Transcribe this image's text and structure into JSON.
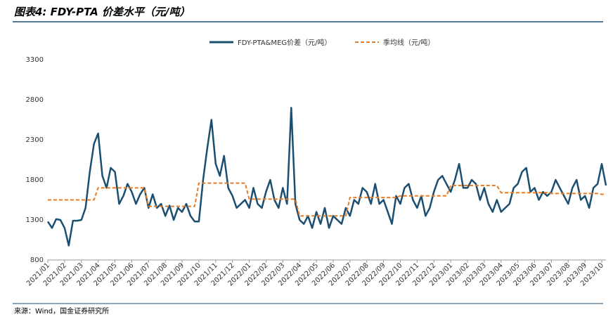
{
  "chart_data": {
    "type": "line",
    "title": "图表4: FDY-PTA 价差水平（元/吨）",
    "source": "来源：Wind，国金证券研究所",
    "categories": [
      "2021/01",
      null,
      null,
      null,
      "2021/02",
      null,
      null,
      null,
      "2021/03",
      null,
      null,
      null,
      "2021/04",
      null,
      null,
      null,
      "2021/05",
      null,
      null,
      null,
      "2021/06",
      null,
      null,
      null,
      "2021/07",
      null,
      null,
      null,
      "2021/08",
      null,
      null,
      null,
      "2021/09",
      null,
      null,
      null,
      "2021/10",
      null,
      null,
      null,
      "2021/11",
      null,
      null,
      null,
      "2021/12",
      null,
      null,
      null,
      "2022/01",
      null,
      null,
      null,
      "2022/02",
      null,
      null,
      null,
      "2022/03",
      null,
      null,
      null,
      "2022/04",
      null,
      null,
      null,
      "2022/05",
      null,
      null,
      null,
      "2022/06",
      null,
      null,
      null,
      "2022/07",
      null,
      null,
      null,
      "2022/08",
      null,
      null,
      null,
      "2022/09",
      null,
      null,
      null,
      "2022/10",
      null,
      null,
      null,
      "2022/11",
      null,
      null,
      null,
      "2022/12",
      null,
      null,
      null,
      "2023/01",
      null,
      null,
      null,
      "2023/02",
      null,
      null,
      null,
      "2023/03",
      null,
      null,
      null,
      "2023/04",
      null,
      null,
      null,
      "2023/05",
      null,
      null,
      null,
      "2023/06",
      null,
      null,
      null,
      "2023/07",
      null,
      null,
      null,
      "2023/08",
      null,
      null,
      null,
      "2023/09",
      null,
      null,
      null,
      "2023/10",
      null
    ],
    "series": [
      {
        "name": "FDY-PTA&MEG价差（元/吨）",
        "color": "#1b4f72",
        "style": "solid",
        "values": [
          1280,
          1200,
          1310,
          1300,
          1200,
          980,
          1290,
          1290,
          1300,
          1450,
          1900,
          2250,
          2380,
          1850,
          1700,
          1950,
          1900,
          1500,
          1600,
          1750,
          1650,
          1500,
          1620,
          1700,
          1450,
          1620,
          1450,
          1500,
          1350,
          1480,
          1300,
          1450,
          1400,
          1500,
          1350,
          1280,
          1280,
          1800,
          2200,
          2550,
          2000,
          1850,
          2100,
          1700,
          1600,
          1450,
          1500,
          1550,
          1450,
          1700,
          1500,
          1450,
          1650,
          1800,
          1550,
          1450,
          1700,
          1500,
          2700,
          1500,
          1300,
          1250,
          1350,
          1200,
          1400,
          1250,
          1450,
          1200,
          1350,
          1300,
          1250,
          1450,
          1350,
          1550,
          1500,
          1700,
          1650,
          1500,
          1750,
          1500,
          1550,
          1400,
          1250,
          1600,
          1500,
          1700,
          1750,
          1550,
          1450,
          1600,
          1350,
          1450,
          1650,
          1800,
          1850,
          1750,
          1650,
          1800,
          2000,
          1700,
          1700,
          1800,
          1750,
          1550,
          1700,
          1500,
          1400,
          1550,
          1400,
          1450,
          1500,
          1700,
          1750,
          1900,
          1950,
          1650,
          1700,
          1550,
          1650,
          1600,
          1650,
          1800,
          1700,
          1600,
          1500,
          1700,
          1800,
          1550,
          1600,
          1450,
          1700,
          1750,
          2000,
          1730
        ]
      },
      {
        "name": "季均线（元/吨）",
        "color": "#e57c27",
        "style": "dashed",
        "values": [
          1550,
          1550,
          1550,
          1550,
          1550,
          1550,
          1550,
          1550,
          1550,
          1550,
          1550,
          1550,
          1700,
          1700,
          1700,
          1700,
          1700,
          1700,
          1700,
          1700,
          1700,
          1700,
          1700,
          1700,
          1470,
          1470,
          1470,
          1470,
          1470,
          1470,
          1470,
          1470,
          1470,
          1470,
          1470,
          1470,
          1760,
          1760,
          1760,
          1760,
          1760,
          1760,
          1760,
          1760,
          1760,
          1760,
          1760,
          1760,
          1560,
          1560,
          1560,
          1560,
          1560,
          1560,
          1560,
          1560,
          1560,
          1560,
          1560,
          1560,
          1350,
          1350,
          1350,
          1350,
          1350,
          1350,
          1350,
          1350,
          1350,
          1350,
          1350,
          1350,
          1580,
          1580,
          1580,
          1580,
          1580,
          1580,
          1580,
          1580,
          1580,
          1580,
          1580,
          1580,
          1600,
          1600,
          1600,
          1600,
          1600,
          1600,
          1600,
          1600,
          1600,
          1600,
          1600,
          1600,
          1730,
          1730,
          1730,
          1730,
          1730,
          1730,
          1730,
          1730,
          1730,
          1730,
          1730,
          1730,
          1640,
          1640,
          1640,
          1640,
          1640,
          1640,
          1640,
          1640,
          1640,
          1640,
          1640,
          1640,
          1630,
          1630,
          1630,
          1630,
          1630,
          1630,
          1630,
          1630,
          1630,
          1630,
          1630,
          1630,
          1620,
          1620
        ]
      }
    ],
    "ylim": [
      800,
      3300
    ],
    "yticks": [
      800,
      1300,
      1800,
      2300,
      2800,
      3300
    ],
    "grid": false
  }
}
